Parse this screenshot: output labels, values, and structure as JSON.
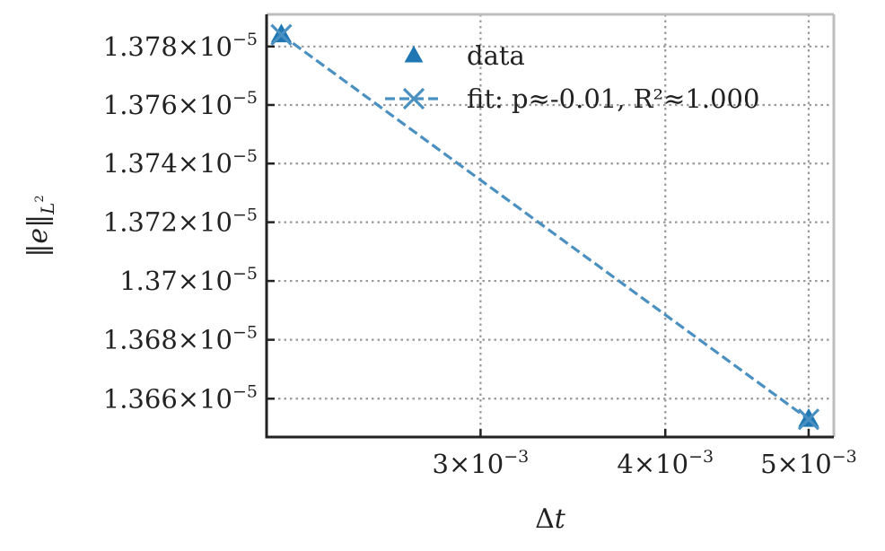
{
  "chart_data": {
    "type": "line",
    "x_scale": "log",
    "y_scale": "log",
    "xlabel": "Δt",
    "ylabel": "‖e‖_{L²}",
    "grid": true,
    "legend_position": "top-right",
    "xlim": [
      0.00215,
      0.0052
    ],
    "ylim": [
      1.3647e-05,
      1.3791e-05
    ],
    "x_ticks": [
      {
        "value": 0.003,
        "mantissa": "3",
        "exponent": "−3"
      },
      {
        "value": 0.004,
        "mantissa": "4",
        "exponent": "−3"
      },
      {
        "value": 0.005,
        "mantissa": "5",
        "exponent": "−3"
      }
    ],
    "y_ticks": [
      {
        "value": 1.366e-05,
        "mantissa": "1.366",
        "exponent": "−5"
      },
      {
        "value": 1.368e-05,
        "mantissa": "1.368",
        "exponent": "−5"
      },
      {
        "value": 1.37e-05,
        "mantissa": "1.37",
        "exponent": "−5"
      },
      {
        "value": 1.372e-05,
        "mantissa": "1.372",
        "exponent": "−5"
      },
      {
        "value": 1.374e-05,
        "mantissa": "1.374",
        "exponent": "−5"
      },
      {
        "value": 1.376e-05,
        "mantissa": "1.376",
        "exponent": "−5"
      },
      {
        "value": 1.378e-05,
        "mantissa": "1.378",
        "exponent": "−5"
      }
    ],
    "series": [
      {
        "name": "data",
        "marker": "triangle-up",
        "line": "none",
        "color": "#1f77b4",
        "x": [
          0.0022,
          0.005
        ],
        "y": [
          1.3784e-05,
          1.3653e-05
        ]
      },
      {
        "name": "fit: p≈-0.01, R²≈1.000",
        "marker": "x",
        "line": "dashed",
        "color": "#4a90c0",
        "x": [
          0.0022,
          0.005
        ],
        "y": [
          1.3784e-05,
          1.3653e-05
        ]
      }
    ],
    "colors": {
      "axis": "#222222",
      "top_right_spine": "#bdbdbd",
      "grid": "#999999"
    }
  }
}
